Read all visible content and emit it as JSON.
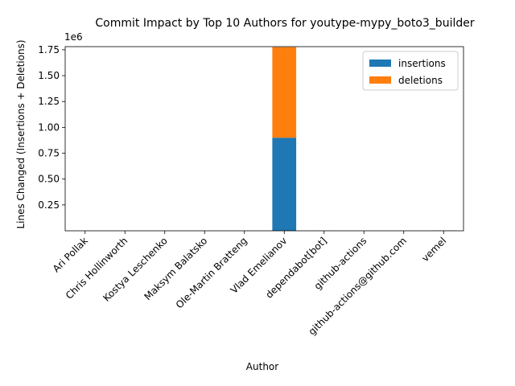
{
  "chart_data": {
    "type": "bar",
    "stacked": true,
    "title": "Commit Impact by Top 10 Authors for youtype-mypy_boto3_builder",
    "xlabel": "Author",
    "ylabel": "Lines Changed (Insertions + Deletions)",
    "y_scale_label": "1e6",
    "categories": [
      "Ari Pollak",
      "Chris Hollinworth",
      "Kostya Leschenko",
      "Maksym Balatsko",
      "Ole-Martin Bratteng",
      "Vlad Emelianov",
      "dependabot[bot]",
      "github-actions",
      "github-actions@github.com",
      "vemel"
    ],
    "series": [
      {
        "name": "insertions",
        "color": "#1f77b4",
        "values": [
          20,
          60,
          15,
          30,
          40,
          900000,
          1200,
          300,
          250,
          2000
        ]
      },
      {
        "name": "deletions",
        "color": "#ff7f0e",
        "values": [
          10,
          30,
          5,
          10,
          20,
          875000,
          900,
          200,
          150,
          1500
        ]
      }
    ],
    "ylim": [
      0,
      1780000
    ],
    "yticks": [
      250000,
      500000,
      750000,
      1000000,
      1250000,
      1500000,
      1750000
    ],
    "ytick_labels": [
      "0.25",
      "0.50",
      "0.75",
      "1.00",
      "1.25",
      "1.50",
      "1.75"
    ],
    "legend_position": "upper-right",
    "grid": false
  }
}
